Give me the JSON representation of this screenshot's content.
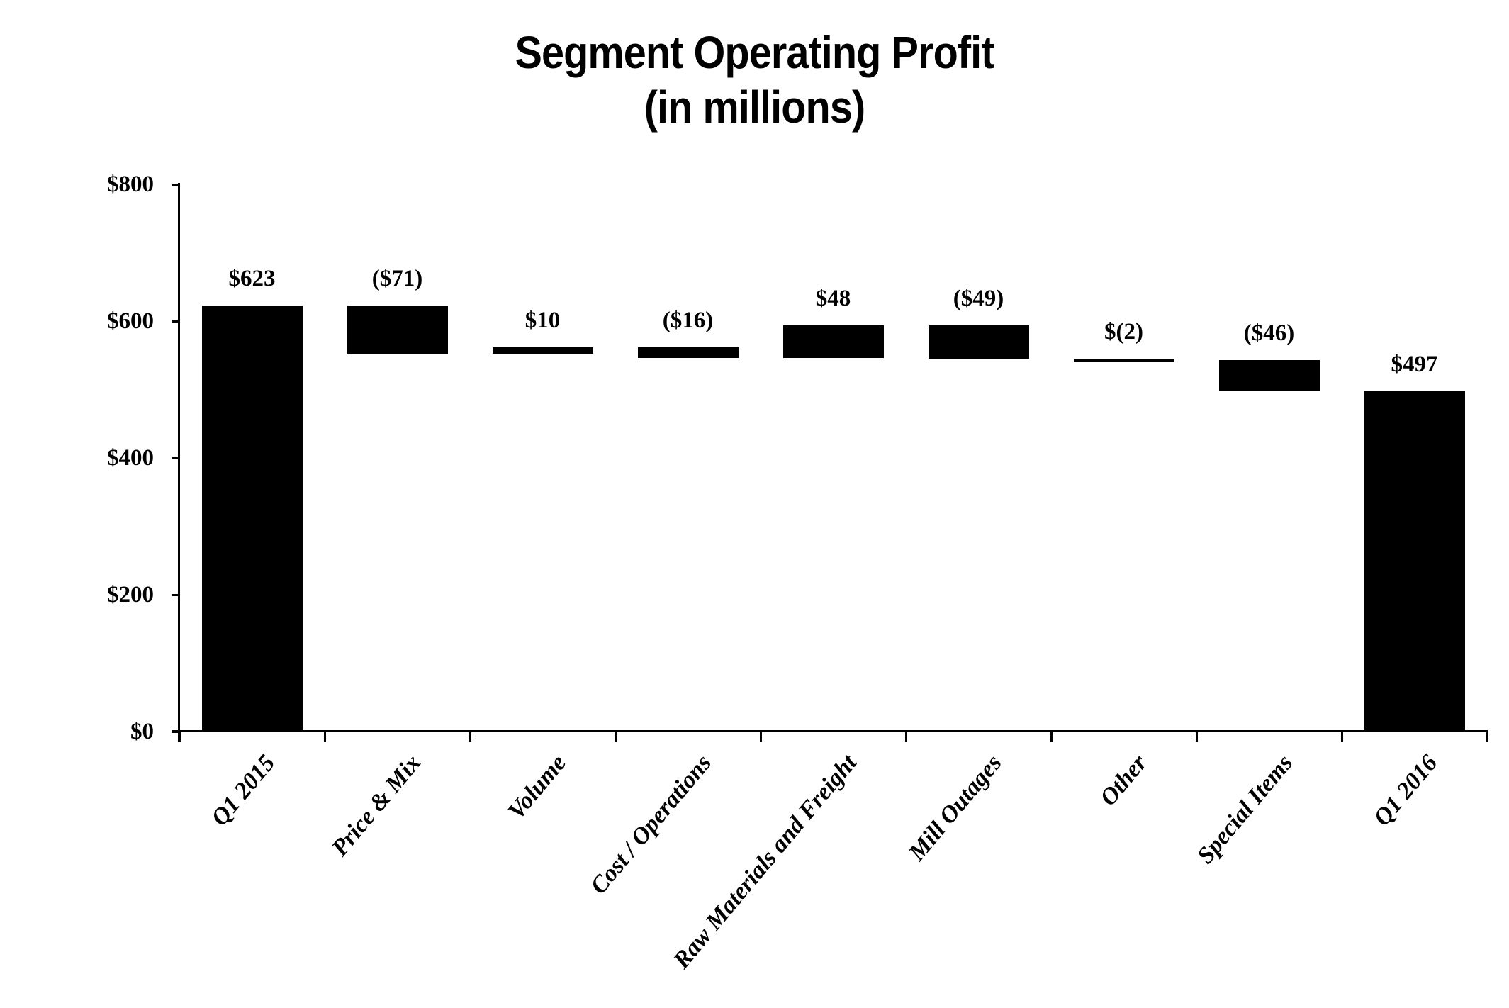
{
  "title": {
    "line1": "Segment Operating Profit",
    "line2": "(in millions)"
  },
  "chart_data": {
    "type": "bar",
    "subtype": "waterfall",
    "title": "Segment Operating Profit (in millions)",
    "xlabel": "",
    "ylabel": "",
    "categories": [
      "Q1 2015",
      "Price & Mix",
      "Volume",
      "Cost / Operations",
      "Raw Materials and Freight",
      "Mill Outages",
      "Other",
      "Special Items",
      "Q1 2016"
    ],
    "values": [
      623,
      -71,
      10,
      -16,
      48,
      -49,
      -2,
      -46,
      497
    ],
    "bar_kinds": [
      "total",
      "delta",
      "delta",
      "delta",
      "delta",
      "delta",
      "delta",
      "delta",
      "total"
    ],
    "bar_labels": [
      "$623",
      "($71)",
      "$10",
      "($16)",
      "$48",
      "($49)",
      "$(2)",
      "($46)",
      "$497"
    ],
    "ylim": [
      0,
      800
    ],
    "ytick_values": [
      0,
      200,
      400,
      600,
      800
    ],
    "ytick_labels": [
      "$0",
      "$200",
      "$400",
      "$600",
      "$800"
    ],
    "grid": false,
    "legend": "none",
    "bar_color": "#000000",
    "axis_color": "#000000",
    "background_color": "#ffffff",
    "text_color": "#000000"
  }
}
